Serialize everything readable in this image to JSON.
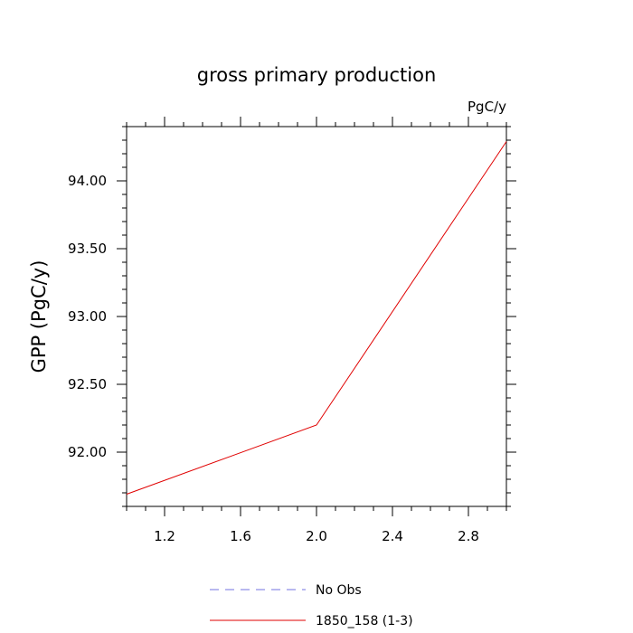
{
  "chart_data": {
    "type": "line",
    "title": "gross primary production",
    "units_label": "PgC/y",
    "ylabel": "GPP  (PgC/y)",
    "xlabel": "",
    "xlim": [
      1.0,
      3.0
    ],
    "ylim": [
      91.6,
      94.4
    ],
    "x_ticks": [
      1.2,
      1.6,
      2.0,
      2.4,
      2.8
    ],
    "x_tick_labels": [
      "1.2",
      "1.6",
      "2.0",
      "2.4",
      "2.8"
    ],
    "y_ticks": [
      92.0,
      92.5,
      93.0,
      93.5,
      94.0
    ],
    "y_tick_labels": [
      "92.00",
      "92.50",
      "93.00",
      "93.50",
      "94.00"
    ],
    "grid": false,
    "legend_position": "bottom",
    "series": [
      {
        "name": "No Obs",
        "color": "#7070e0",
        "dash": "dashed",
        "x": [],
        "y": []
      },
      {
        "name": "1850_158 (1-3)",
        "color": "#e00000",
        "dash": "solid",
        "x": [
          1.0,
          2.0,
          3.0
        ],
        "y": [
          91.69,
          92.2,
          94.29
        ]
      }
    ]
  }
}
